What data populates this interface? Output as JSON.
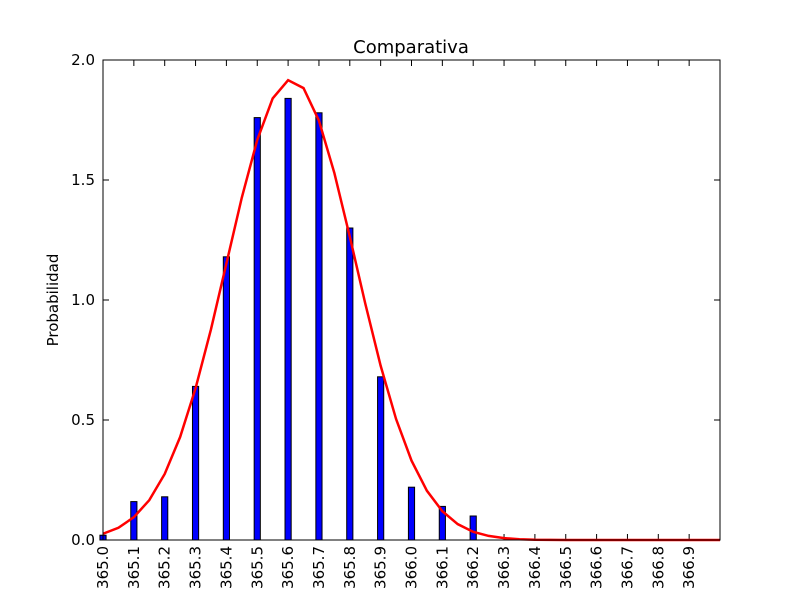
{
  "chart_data": {
    "type": "bar",
    "title": "Comparativa",
    "ylabel": "Probabilidad",
    "x": [
      365.0,
      365.1,
      365.2,
      365.3,
      365.4,
      365.5,
      365.6,
      365.7,
      365.8,
      365.9,
      366.0,
      366.1,
      366.2
    ],
    "values": [
      0.02,
      0.16,
      0.18,
      0.64,
      1.18,
      1.76,
      1.84,
      1.78,
      1.3,
      0.68,
      0.22,
      0.14,
      0.1
    ],
    "color": "#0000ff",
    "curve": {
      "type": "line",
      "color": "#ff0000",
      "x": [
        365.0,
        365.05,
        365.1,
        365.15,
        365.2,
        365.25,
        365.3,
        365.35,
        365.4,
        365.45,
        365.5,
        365.55,
        365.6,
        365.65,
        365.7,
        365.75,
        365.8,
        365.85,
        365.9,
        365.95,
        366.0,
        366.05,
        366.1,
        366.15,
        366.2,
        366.25,
        366.3,
        366.35,
        366.4,
        366.5,
        366.6,
        366.7,
        366.8,
        366.9,
        367.0
      ],
      "values": [
        0.026,
        0.051,
        0.095,
        0.166,
        0.275,
        0.429,
        0.632,
        0.878,
        1.152,
        1.427,
        1.667,
        1.84,
        1.916,
        1.883,
        1.747,
        1.529,
        1.264,
        0.986,
        0.726,
        0.504,
        0.331,
        0.205,
        0.12,
        0.066,
        0.034,
        0.017,
        0.008,
        0.003,
        0.001,
        0,
        0,
        0,
        0,
        0,
        0
      ]
    },
    "xlim": [
      365.0,
      367.0
    ],
    "xticks": [
      {
        "value": 365.0,
        "label": "365.0"
      },
      365.1,
      365.2,
      365.3,
      365.4,
      365.5,
      365.6,
      365.7,
      365.8,
      365.9,
      {
        "value": 366.0,
        "label": "366.0"
      },
      366.1,
      366.2,
      366.3,
      366.4,
      366.5,
      366.6,
      366.7,
      366.8,
      366.9
    ],
    "ylim": [
      0,
      2
    ],
    "yticks": [
      {
        "value": 0,
        "label": "0.0"
      },
      0.5,
      {
        "value": 1,
        "label": "1.0"
      },
      1.5,
      {
        "value": 2,
        "label": "2.0"
      }
    ],
    "grid": false
  }
}
